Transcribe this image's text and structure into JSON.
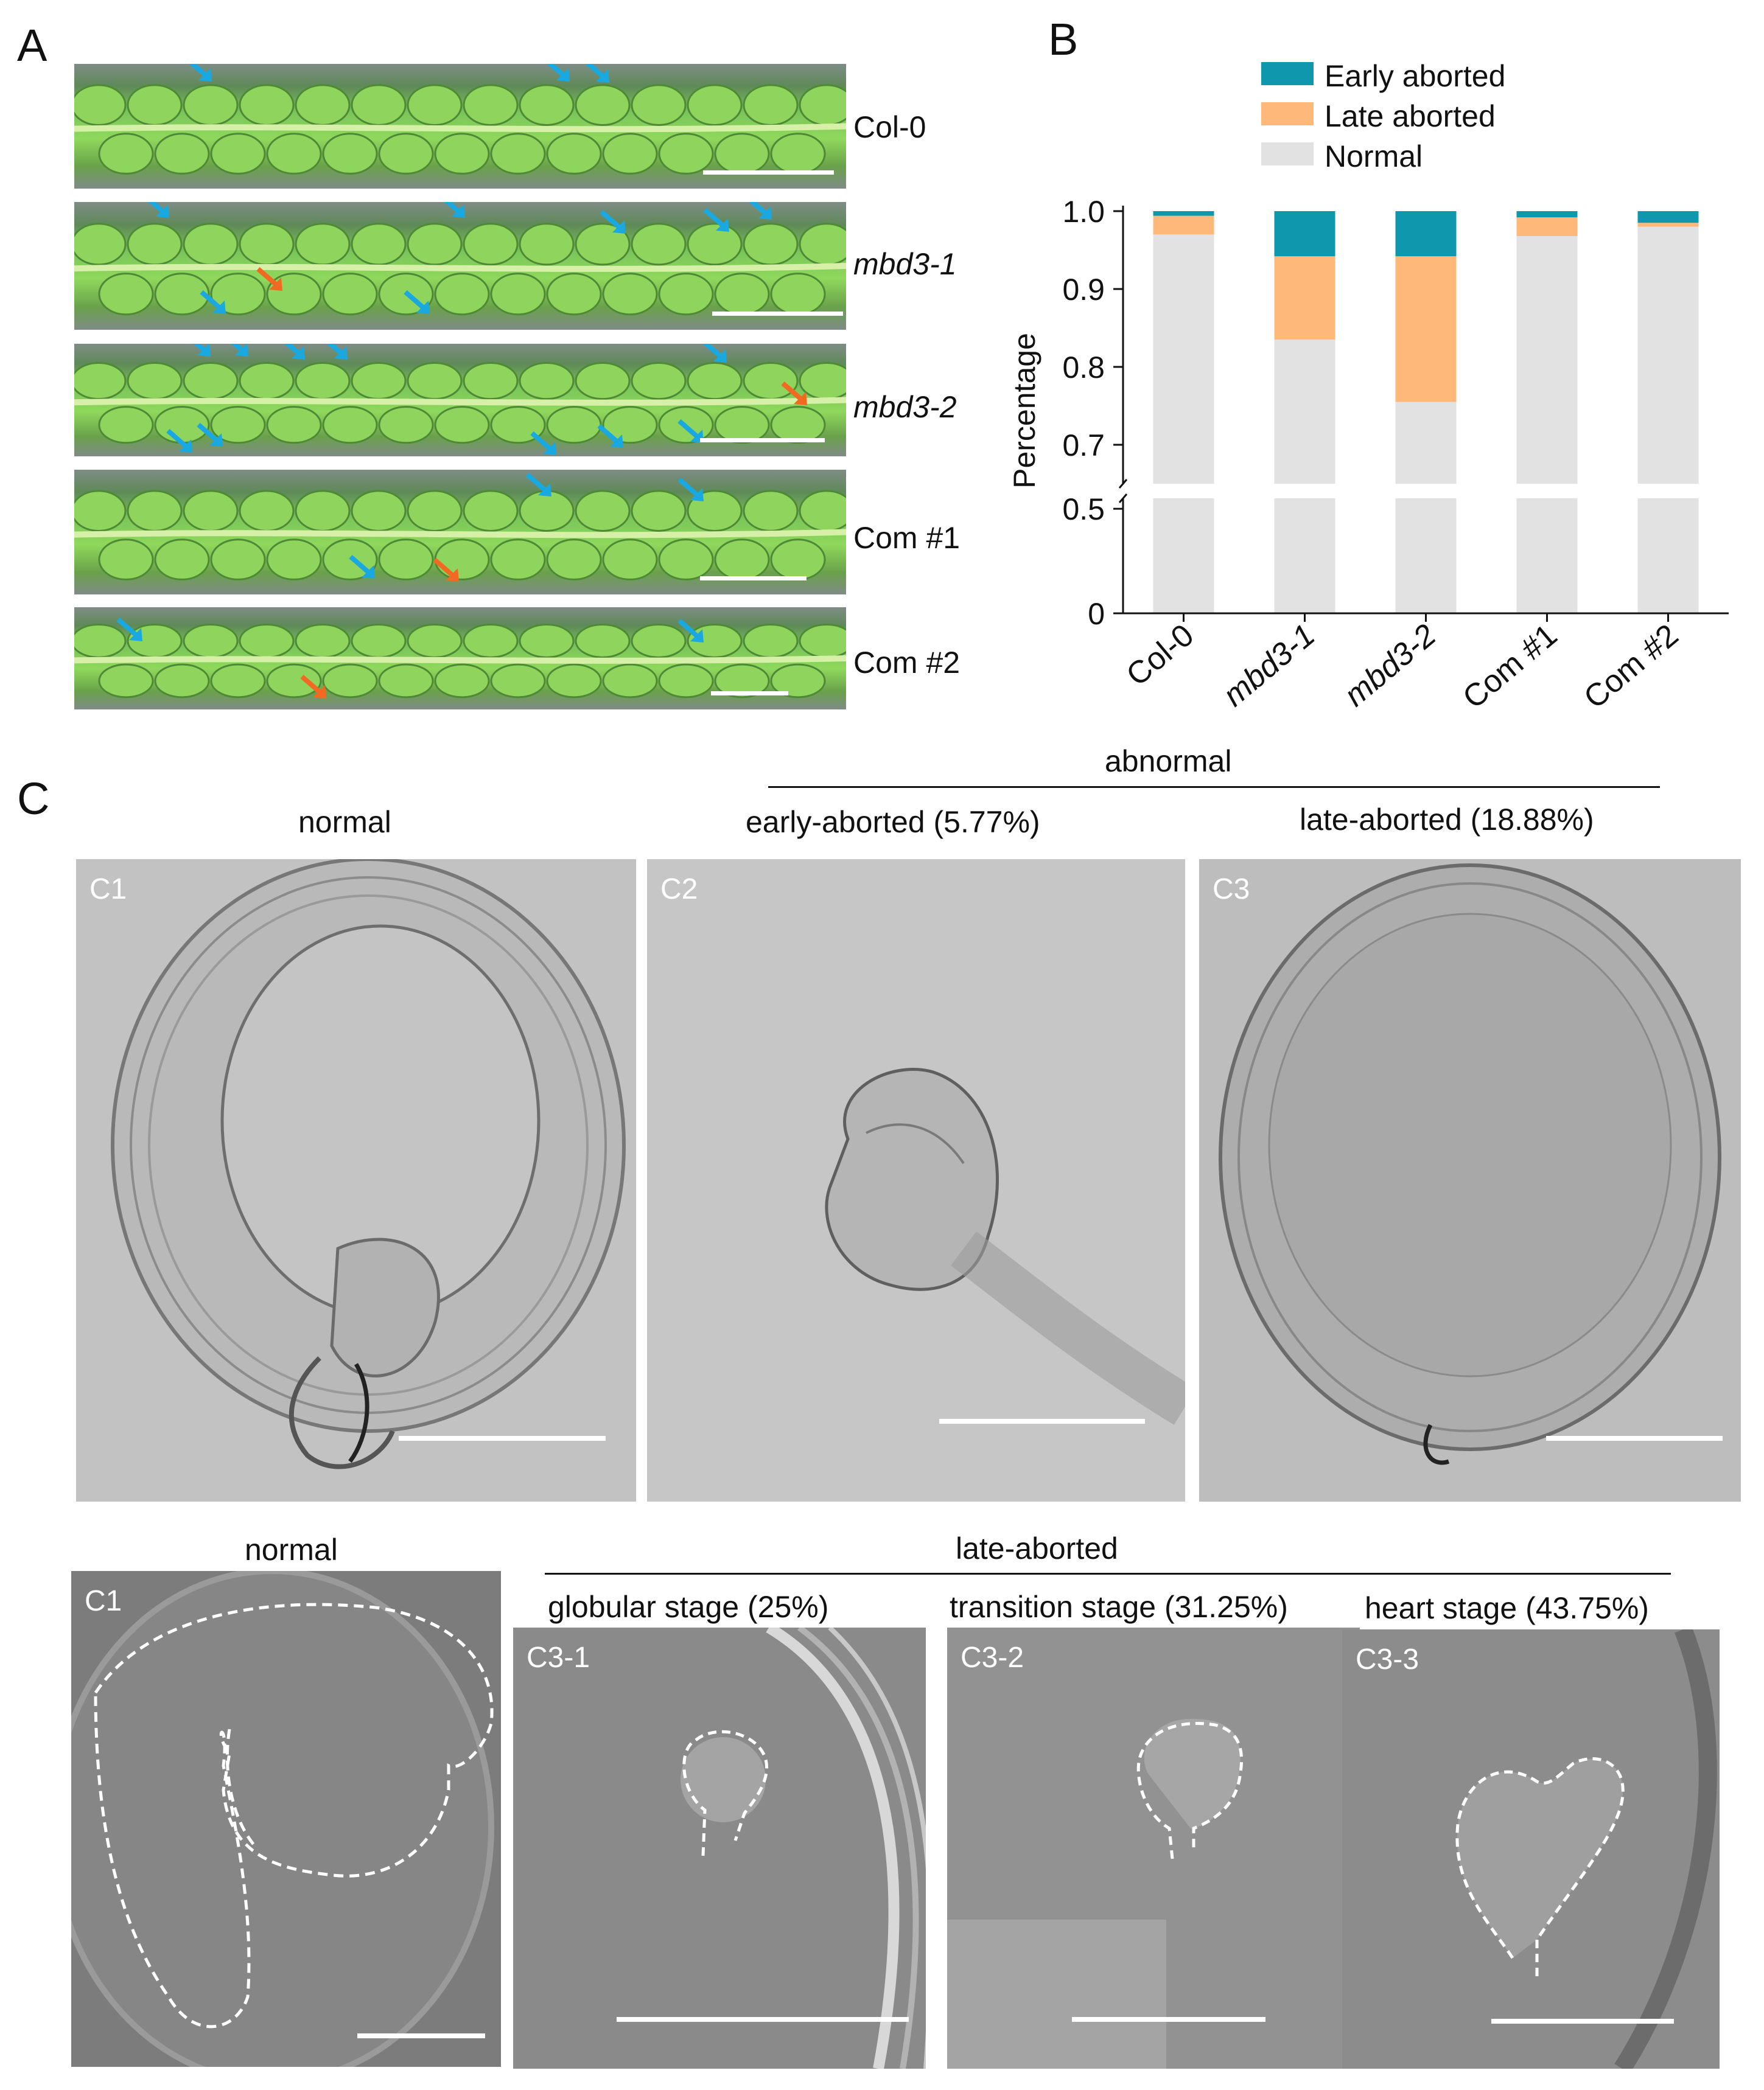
{
  "panel_letters": {
    "a": "A",
    "b": "B",
    "c": "C"
  },
  "panel_a": {
    "rows": [
      {
        "label": "Col-0",
        "italic": false
      },
      {
        "label": "mbd3-1",
        "italic": true
      },
      {
        "label": "mbd3-2",
        "italic": true
      },
      {
        "label": "Com #1",
        "italic": false
      },
      {
        "label": "Com #2",
        "italic": false
      }
    ],
    "arrow_colors": {
      "early": "#1aa8e0",
      "late": "#f26a21"
    }
  },
  "chart_data": {
    "type": "bar",
    "stacked": true,
    "categories": [
      "Col-0",
      "mbd3-1",
      "mbd3-2",
      "Com #1",
      "Com #2"
    ],
    "series": [
      {
        "name": "Normal",
        "color": "#e2e2e2",
        "values": [
          0.97,
          0.835,
          0.755,
          0.968,
          0.98
        ]
      },
      {
        "name": "Late aborted",
        "color": "#fdb87a",
        "values": [
          0.024,
          0.107,
          0.187,
          0.024,
          0.005
        ]
      },
      {
        "name": "Early aborted",
        "color": "#0f98ad",
        "values": [
          0.006,
          0.058,
          0.058,
          0.008,
          0.015
        ]
      }
    ],
    "ylabel": "Percentage",
    "yticks": [
      "0",
      "0.5",
      "0.7",
      "0.8",
      "0.9",
      "1.0"
    ],
    "ylim": [
      0,
      1.0
    ],
    "axis_break": [
      0.55,
      0.65
    ],
    "legend_position": "top"
  },
  "panel_c": {
    "abnormal_label": "abnormal",
    "top": [
      {
        "tag": "C1",
        "title": "normal"
      },
      {
        "tag": "C2",
        "title": "early-aborted (5.77%)"
      },
      {
        "tag": "C3",
        "title": "late-aborted (18.88%)"
      }
    ],
    "bottom_normal": {
      "tag": "C1",
      "title": "normal"
    },
    "late_aborted_label": "late-aborted",
    "bottom": [
      {
        "tag": "C3-1",
        "title": "globular stage (25%)"
      },
      {
        "tag": "C3-2",
        "title": "transition stage (31.25%)"
      },
      {
        "tag": "C3-3",
        "title": "heart stage (43.75%)"
      }
    ]
  }
}
